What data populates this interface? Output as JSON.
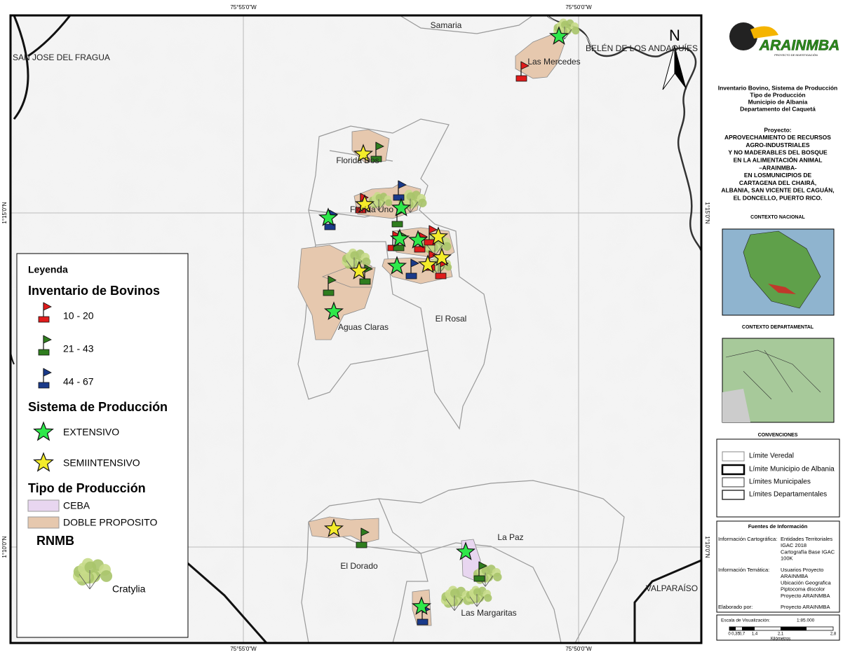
{
  "map": {
    "coords": {
      "top": [
        "75°55'0\"W",
        "75°50'0\"W"
      ],
      "bottom": [
        "75°55'0\"W",
        "75°50'0\"W"
      ],
      "left": [
        "1°15'0\"N",
        "1°10'0\"N"
      ],
      "right": [
        "1°15'0\"N",
        "1°10'0\"N"
      ]
    },
    "places": [
      "Samaria",
      "SAN JOSE DEL FRAGUA",
      "BELÉN DE LOS ANDAQUÍES",
      "Las Mercedes",
      "Florida Dos",
      "Florida Uno",
      "Aguas Claras",
      "El Rosal",
      "El Dorado",
      "La Paz",
      "Las Margaritas",
      "VALPARAÍSO"
    ],
    "north": "N"
  },
  "legend": {
    "title": "Leyenda",
    "sections": [
      {
        "title": "Inventario de Bovinos",
        "items": [
          "10 - 20",
          "21 - 43",
          "44 - 67"
        ]
      },
      {
        "title": "Sistema de Producción",
        "items": [
          "EXTENSIVO",
          "SEMIINTENSIVO"
        ]
      },
      {
        "title": "Tipo de Producción",
        "items": [
          "CEBA",
          "DOBLE PROPOSITO"
        ]
      },
      {
        "title": "RNMB",
        "items": [
          "Cratylia"
        ]
      }
    ]
  },
  "sidebar": {
    "logo": "ARAINMBA",
    "logo_sub": "PROYECTO DE INVESTIGACIÓN",
    "title_lines": [
      "Inventario Bovino, Sistema de Producción",
      "Tipo de Producción",
      "Municipio de Albania",
      "Departamento del Caquetá"
    ],
    "project_lines": [
      "Proyecto:",
      "APROVECHAMIENTO DE RECURSOS",
      "AGRO-INDUSTRIALES",
      "Y NO MADERABLES DEL BOSQUE",
      "EN LA ALIMENTACIÓN ANIMAL",
      "–ARAINMBA-",
      "EN LOSMUNICIPIOS DE",
      "CARTAGENA DEL CHAIRÁ,",
      "ALBANIA, SAN VICENTE DEL CAGUÁN,",
      "EL DONCELLO, PUERTO RICO."
    ],
    "context_national": "CONTEXTO NACIONAL",
    "context_departmental": "CONTEXTO DEPARTAMENTAL",
    "conventions_title": "CONVENCIONES",
    "conventions": [
      "Límite Veredal",
      "Límite Municipio de Albania",
      "Límites Municipales",
      "Límites Departamentales"
    ],
    "sources_title": "Fuentes de Información",
    "sources": [
      {
        "label": "Información Cartográfica:",
        "lines": [
          "Entidades Territoriales",
          "IGAC 2018",
          "Cartografía Base IGAC",
          "100K"
        ]
      },
      {
        "label": "Información Temática:",
        "lines": [
          "Usuarios Proyecto",
          "ARAINMBA",
          "Ubicación Geografica",
          "Piptocoma discolor",
          "Proyecto ARAINMBA"
        ]
      },
      {
        "label": "Elaborado por:",
        "lines": [
          "Proyecto ARAINMBA"
        ]
      }
    ],
    "scale_label": "Escala de Visualización:",
    "scale": "1:85.000",
    "scale_ticks": [
      "0",
      "0,35",
      "0,7",
      "1,4",
      "2,1",
      "2,8"
    ],
    "scale_unit": "Kilómetros"
  }
}
